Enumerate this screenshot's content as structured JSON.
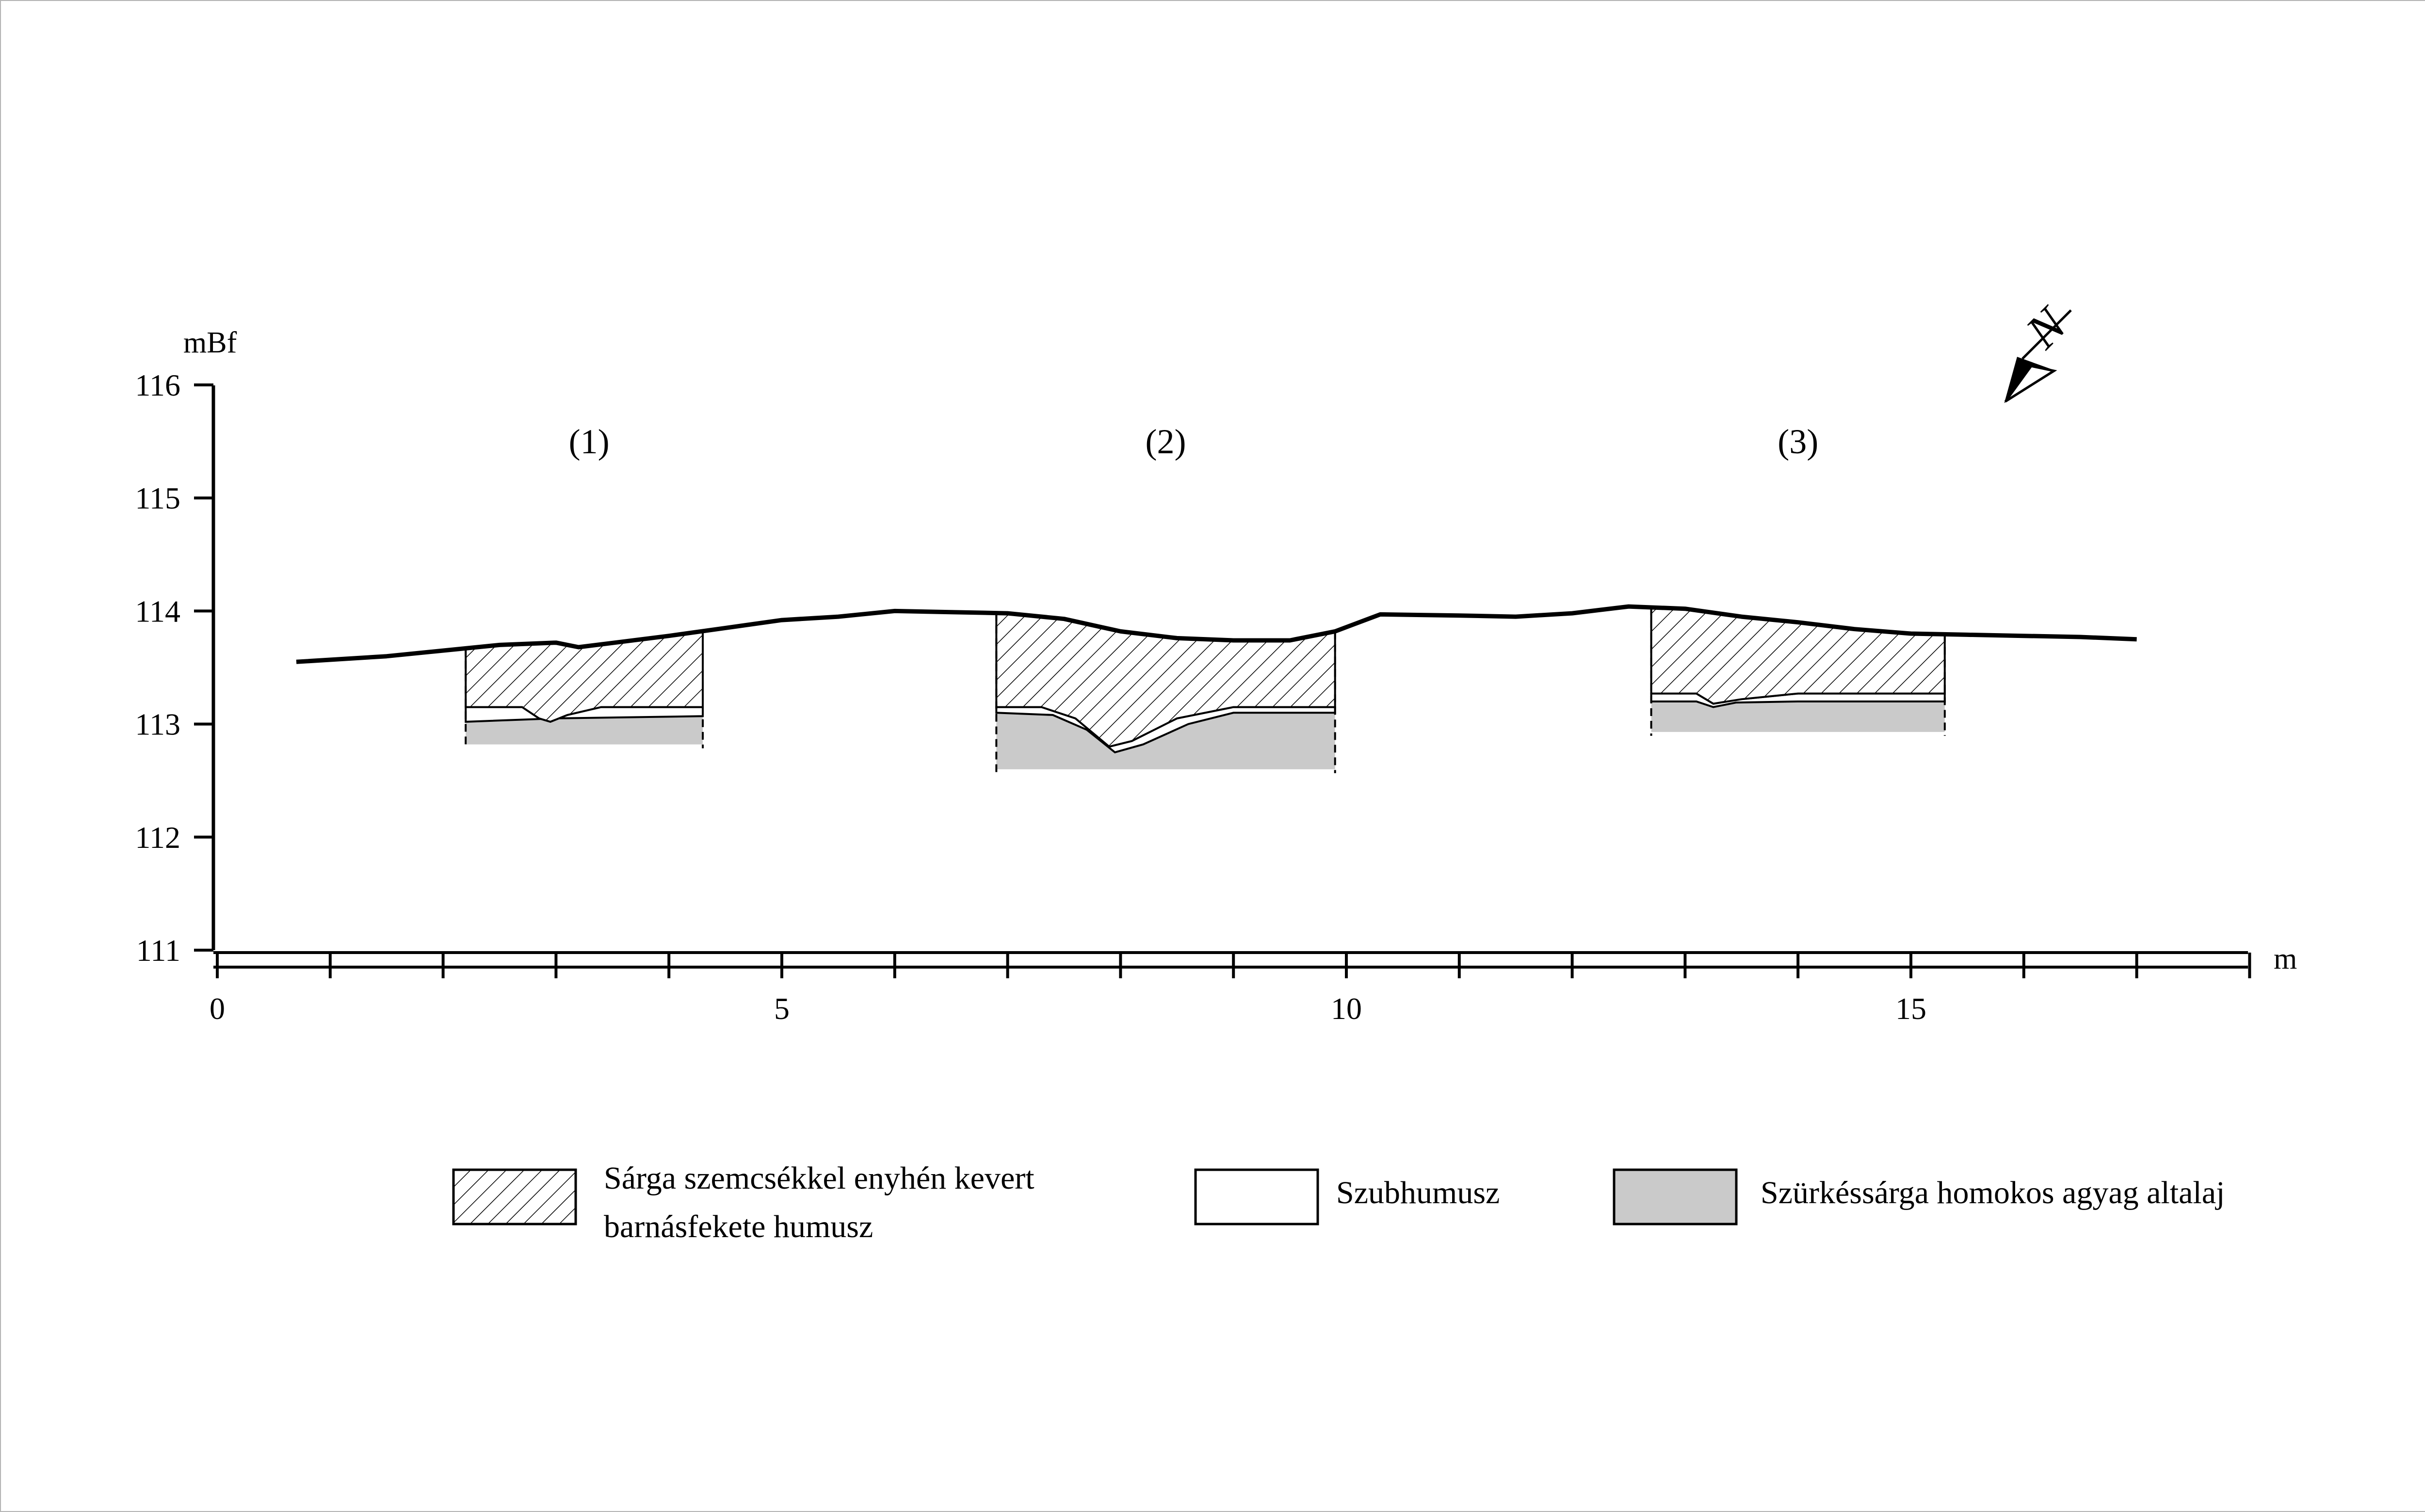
{
  "chart_data": {
    "type": "cross-section profile",
    "y_unit": "mBf",
    "x_unit": "m",
    "y_ticks": [
      "116",
      "115",
      "114",
      "113",
      "112",
      "111"
    ],
    "x_tick_labels": [
      "0",
      "5",
      "10",
      "15"
    ],
    "ylim": [
      111,
      116
    ],
    "xlim": [
      0,
      18
    ],
    "ground_surface": [
      [
        0.7,
        113.55
      ],
      [
        1.5,
        113.6
      ],
      [
        2.5,
        113.7
      ],
      [
        3.0,
        113.72
      ],
      [
        3.2,
        113.68
      ],
      [
        4.0,
        113.78
      ],
      [
        4.5,
        113.85
      ],
      [
        5.0,
        113.92
      ],
      [
        5.5,
        113.95
      ],
      [
        6.0,
        114.0
      ],
      [
        6.5,
        113.99
      ],
      [
        7.0,
        113.98
      ],
      [
        7.5,
        113.93
      ],
      [
        8.0,
        113.82
      ],
      [
        8.5,
        113.76
      ],
      [
        9.0,
        113.74
      ],
      [
        9.5,
        113.74
      ],
      [
        9.9,
        113.82
      ],
      [
        10.3,
        113.97
      ],
      [
        11.0,
        113.96
      ],
      [
        11.5,
        113.95
      ],
      [
        12.0,
        113.98
      ],
      [
        12.5,
        114.04
      ],
      [
        13.0,
        114.02
      ],
      [
        13.5,
        113.95
      ],
      [
        14.0,
        113.9
      ],
      [
        14.5,
        113.84
      ],
      [
        15.0,
        113.8
      ],
      [
        15.5,
        113.79
      ],
      [
        16.0,
        113.78
      ],
      [
        16.5,
        113.77
      ],
      [
        17.0,
        113.75
      ]
    ],
    "trenches": [
      {
        "label": "(1)",
        "x_range": [
          2.2,
          4.3
        ],
        "humus_bottom": [
          [
            2.2,
            113.15
          ],
          [
            2.7,
            113.15
          ],
          [
            2.85,
            113.05
          ],
          [
            2.95,
            113.02
          ],
          [
            3.1,
            113.08
          ],
          [
            3.4,
            113.15
          ],
          [
            4.3,
            113.15
          ]
        ],
        "subsoil_top": [
          [
            2.2,
            113.02
          ],
          [
            3.0,
            113.05
          ],
          [
            4.3,
            113.07
          ]
        ],
        "bottom": 112.82
      },
      {
        "label": "(2)",
        "x_range": [
          6.9,
          9.9
        ],
        "humus_bottom": [
          [
            6.9,
            113.15
          ],
          [
            7.3,
            113.15
          ],
          [
            7.6,
            113.05
          ],
          [
            7.9,
            112.8
          ],
          [
            8.1,
            112.85
          ],
          [
            8.5,
            113.05
          ],
          [
            9.0,
            113.15
          ],
          [
            9.9,
            113.15
          ]
        ],
        "subsoil_top": [
          [
            6.9,
            113.1
          ],
          [
            7.4,
            113.08
          ],
          [
            7.7,
            112.95
          ],
          [
            7.95,
            112.75
          ],
          [
            8.2,
            112.82
          ],
          [
            8.6,
            113.0
          ],
          [
            9.0,
            113.1
          ],
          [
            9.9,
            113.1
          ]
        ],
        "bottom": 112.6
      },
      {
        "label": "(3)",
        "x_range": [
          12.7,
          15.3
        ],
        "humus_bottom": [
          [
            12.7,
            113.27
          ],
          [
            13.1,
            113.27
          ],
          [
            13.25,
            113.18
          ],
          [
            13.5,
            113.22
          ],
          [
            14.0,
            113.27
          ],
          [
            15.3,
            113.27
          ]
        ],
        "subsoil_top": [
          [
            12.7,
            113.2
          ],
          [
            13.1,
            113.2
          ],
          [
            13.25,
            113.15
          ],
          [
            13.45,
            113.19
          ],
          [
            14.0,
            113.2
          ],
          [
            15.3,
            113.2
          ]
        ],
        "bottom": 112.93
      }
    ],
    "north_arrow_label": "N",
    "legend": [
      {
        "key": "humus",
        "line1": "Sárga szemcsékkel enyhén kevert",
        "line2": "barnásfekete humusz"
      },
      {
        "key": "subhumus",
        "line1": "Szubhumusz",
        "line2": ""
      },
      {
        "key": "subsoil",
        "line1": "Szürkéssárga homokos agyag altalaj",
        "line2": ""
      }
    ],
    "colors": {
      "line": "#000000",
      "subsoil": "#cacaca",
      "background": "#ffffff",
      "frame": "#b4b4b4"
    }
  }
}
